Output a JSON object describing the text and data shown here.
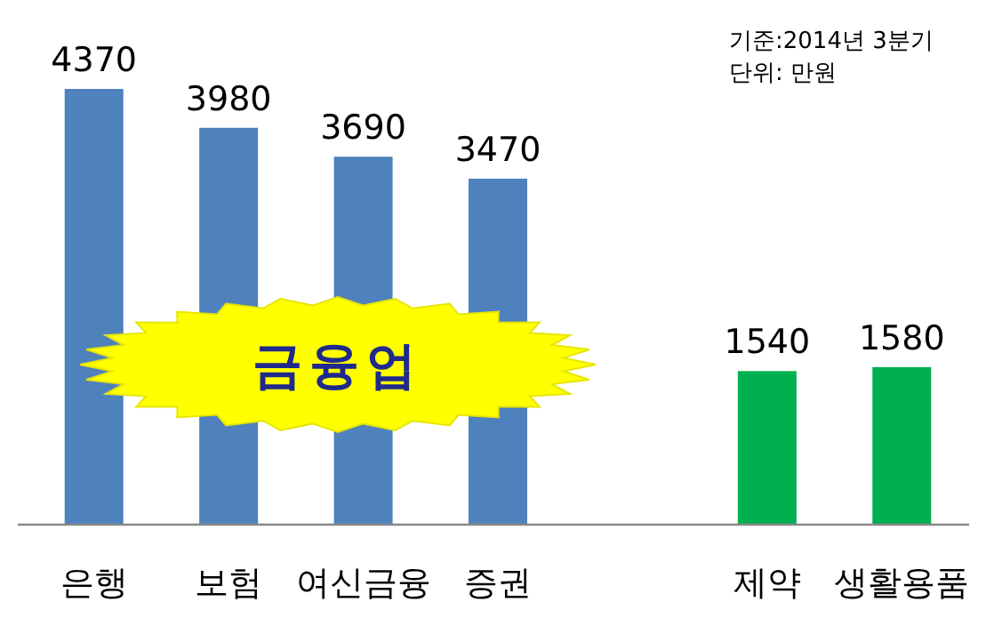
{
  "chart_data": {
    "type": "bar",
    "categories": [
      "은행",
      "보험",
      "여신금융",
      "증권",
      null,
      "제약",
      "생활용품"
    ],
    "values": [
      4370,
      3980,
      3690,
      3470,
      null,
      1540,
      1580
    ],
    "colors": [
      "#4f81bd",
      "#4f81bd",
      "#4f81bd",
      "#4f81bd",
      null,
      "#00b050",
      "#00b050"
    ],
    "data_labels": true,
    "annotations": [
      "기준:2014년 3분기",
      "단위: 만원",
      "금융업"
    ]
  }
}
